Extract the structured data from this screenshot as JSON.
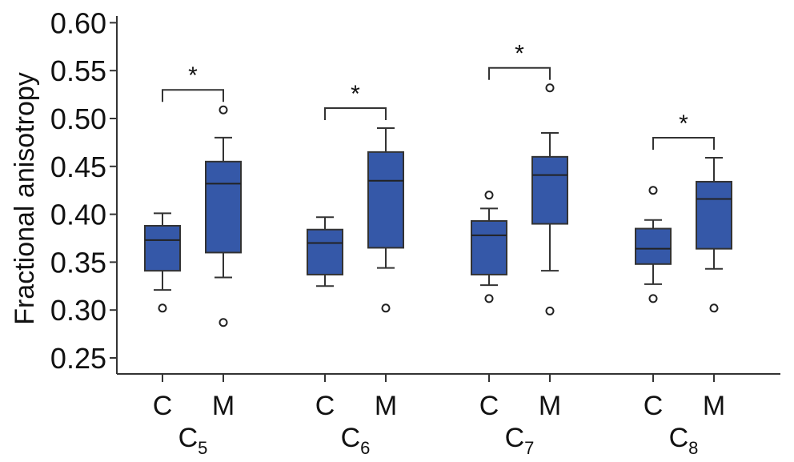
{
  "chart_data": {
    "type": "boxplot",
    "ylabel": "Fractional anisotropy",
    "ylim": [
      0.23,
      0.61
    ],
    "yticks": [
      "0.25",
      "0.30",
      "0.35",
      "0.40",
      "0.45",
      "0.50",
      "0.55",
      "0.60"
    ],
    "box_color": "#3558a8",
    "groups": [
      {
        "name": "C",
        "sub": "5",
        "significance": "*",
        "boxes": [
          {
            "label": "C",
            "min": 0.321,
            "q1": 0.341,
            "median": 0.373,
            "q3": 0.388,
            "max": 0.401,
            "outliers": [
              0.302
            ]
          },
          {
            "label": "M",
            "min": 0.334,
            "q1": 0.36,
            "median": 0.432,
            "q3": 0.455,
            "max": 0.48,
            "outliers": [
              0.509,
              0.287
            ]
          }
        ]
      },
      {
        "name": "C",
        "sub": "6",
        "significance": "*",
        "boxes": [
          {
            "label": "C",
            "min": 0.325,
            "q1": 0.337,
            "median": 0.37,
            "q3": 0.384,
            "max": 0.397,
            "outliers": []
          },
          {
            "label": "M",
            "min": 0.344,
            "q1": 0.365,
            "median": 0.435,
            "q3": 0.465,
            "max": 0.49,
            "outliers": [
              0.302
            ]
          }
        ]
      },
      {
        "name": "C",
        "sub": "7",
        "significance": "*",
        "boxes": [
          {
            "label": "C",
            "min": 0.326,
            "q1": 0.337,
            "median": 0.378,
            "q3": 0.393,
            "max": 0.406,
            "outliers": [
              0.42,
              0.312
            ]
          },
          {
            "label": "M",
            "min": 0.341,
            "q1": 0.39,
            "median": 0.441,
            "q3": 0.46,
            "max": 0.485,
            "outliers": [
              0.532,
              0.299
            ]
          }
        ]
      },
      {
        "name": "C",
        "sub": "8",
        "significance": "*",
        "boxes": [
          {
            "label": "C",
            "min": 0.327,
            "q1": 0.348,
            "median": 0.364,
            "q3": 0.385,
            "max": 0.394,
            "outliers": [
              0.425,
              0.312
            ]
          },
          {
            "label": "M",
            "min": 0.343,
            "q1": 0.364,
            "median": 0.416,
            "q3": 0.434,
            "max": 0.459,
            "outliers": [
              0.302
            ]
          }
        ]
      }
    ]
  }
}
